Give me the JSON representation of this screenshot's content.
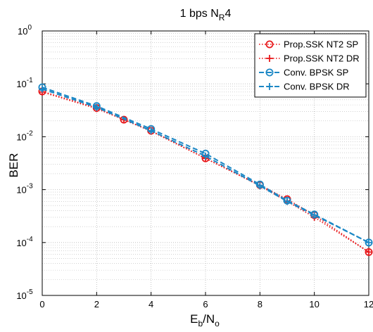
{
  "chart_data": {
    "type": "line",
    "title": {
      "main": "1 bps N",
      "sub": "R",
      "tail": "4"
    },
    "xlabel": {
      "main": "E",
      "sub1": "b",
      "mid": "/N",
      "sub2": "o"
    },
    "ylabel": "BER",
    "xlim": [
      0,
      12
    ],
    "ylim": [
      1e-05,
      1
    ],
    "yscale": "log",
    "grid": true,
    "legend_position": "top-right",
    "x_ticks": [
      "0",
      "2",
      "4",
      "6",
      "8",
      "10",
      "12"
    ],
    "y_ticks": [
      {
        "base": "10",
        "exp": "-5"
      },
      {
        "base": "10",
        "exp": "-4"
      },
      {
        "base": "10",
        "exp": "-3"
      },
      {
        "base": "10",
        "exp": "-2"
      },
      {
        "base": "10",
        "exp": "-1"
      },
      {
        "base": "10",
        "exp": "0"
      }
    ],
    "series": [
      {
        "name": "Prop.SSK NT2 SP",
        "color": "#e8191c",
        "line": "dotted",
        "marker": "circle",
        "x": [
          0,
          2,
          3,
          4,
          6,
          8,
          9,
          10,
          12
        ],
        "y": [
          0.072,
          0.035,
          0.021,
          0.013,
          0.0039,
          0.00122,
          0.00066,
          0.00033,
          6.6e-05
        ]
      },
      {
        "name": "Prop.SSK NT2 DR",
        "color": "#e8191c",
        "line": "dotted",
        "marker": "plus",
        "x": [
          0,
          2,
          3,
          4,
          6,
          8,
          9,
          10,
          12
        ],
        "y": [
          0.07,
          0.034,
          0.021,
          0.0127,
          0.0039,
          0.00118,
          0.0006,
          0.0003,
          6.6e-05
        ]
      },
      {
        "name": "Conv. BPSK SP",
        "color": "#1b87c5",
        "line": "dashed",
        "marker": "circle",
        "x": [
          0,
          2,
          4,
          6,
          8,
          9,
          10,
          12
        ],
        "y": [
          0.086,
          0.038,
          0.014,
          0.0048,
          0.00125,
          0.00062,
          0.00034,
          0.0001
        ]
      },
      {
        "name": "Conv. BPSK DR",
        "color": "#1b87c5",
        "line": "dashed",
        "marker": "plus",
        "x": [
          0,
          2,
          4,
          6,
          8,
          9,
          10,
          12
        ],
        "y": [
          0.08,
          0.036,
          0.013,
          0.0043,
          0.00118,
          0.0006,
          0.00033,
          0.0001
        ]
      }
    ]
  }
}
